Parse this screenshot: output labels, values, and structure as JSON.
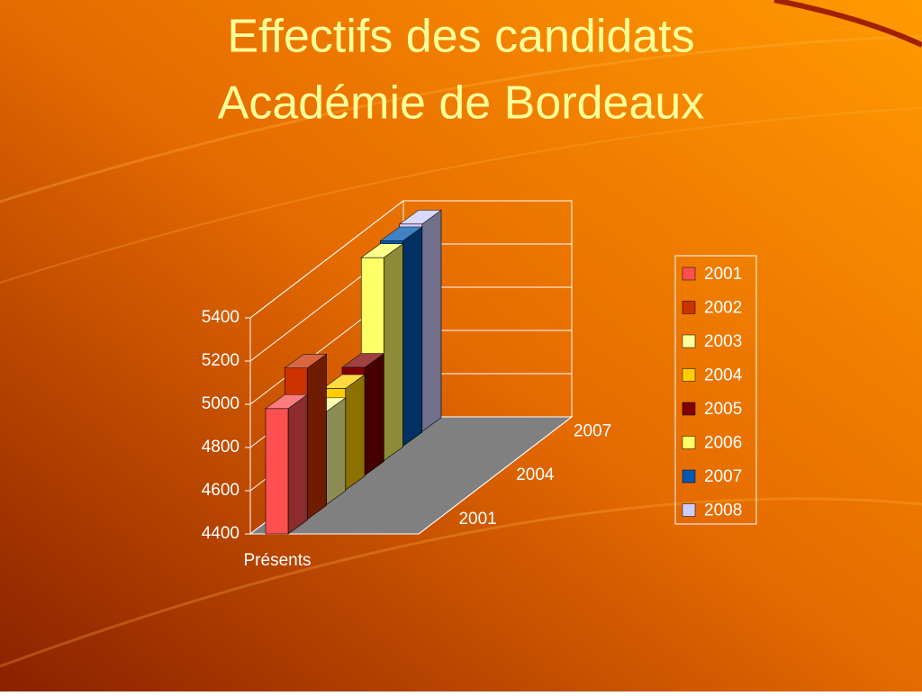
{
  "chart_data": {
    "type": "bar3d",
    "title": [
      "Effectifs des candidats",
      "Académie de Bordeaux"
    ],
    "categories": [
      "Présents"
    ],
    "depth_labels": [
      "2001",
      "2004",
      "2007"
    ],
    "series": [
      {
        "name": "2001",
        "color": "#ff5050",
        "values": [
          4980
        ]
      },
      {
        "name": "2002",
        "color": "#cc3300",
        "values": [
          5100
        ]
      },
      {
        "name": "2003",
        "color": "#ffff99",
        "values": [
          4830
        ]
      },
      {
        "name": "2004",
        "color": "#ffcc00",
        "values": [
          4870
        ]
      },
      {
        "name": "2005",
        "color": "#800000",
        "values": [
          4900
        ]
      },
      {
        "name": "2006",
        "color": "#ffff66",
        "values": [
          5340
        ]
      },
      {
        "name": "2007",
        "color": "#0059b3",
        "values": [
          5350
        ]
      },
      {
        "name": "2008",
        "color": "#ccccff",
        "values": [
          5360
        ]
      }
    ],
    "ylim": [
      4400,
      5400
    ],
    "yticks": [
      4400,
      4600,
      4800,
      5000,
      5200,
      5400
    ],
    "grid": true
  }
}
